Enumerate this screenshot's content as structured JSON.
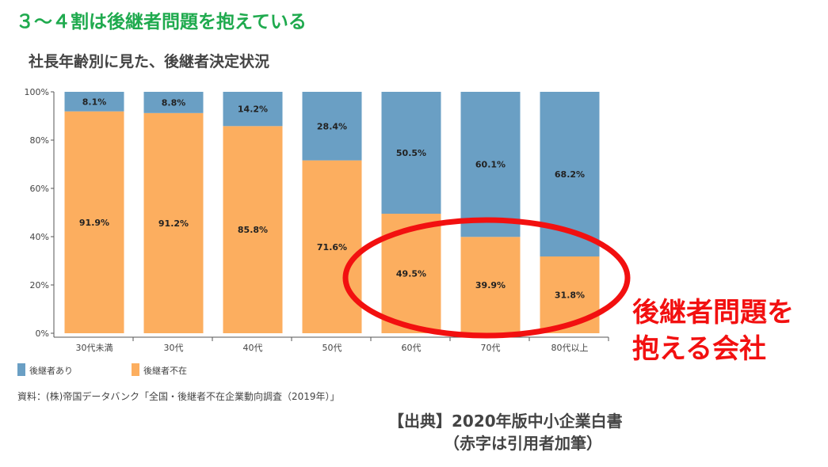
{
  "headline": "３～４割は後継者問題を抱えている",
  "source_note": "資料：(株)帝国データバンク「全国・後継者不在企業動向調査（2019年）」",
  "citation": {
    "line1": "【出典】2020年版中小企業白書",
    "line2": "（赤字は引用者加筆）"
  },
  "annotation": {
    "line1": "後継者問題を",
    "line2": "抱える会社"
  },
  "colors": {
    "has_successor": "#6a9fc4",
    "no_successor": "#fcae5f",
    "annotation": "#f21010",
    "headline": "#1faa4e"
  },
  "chart_data": {
    "type": "bar",
    "stacked": true,
    "title": "社長年齢別に見た、後継者決定状況",
    "categories": [
      "30代未満",
      "30代",
      "40代",
      "50代",
      "60代",
      "70代",
      "80代以上"
    ],
    "series": [
      {
        "name": "後継者不在",
        "values": [
          91.9,
          91.2,
          85.8,
          71.6,
          49.5,
          39.9,
          31.8
        ]
      },
      {
        "name": "後継者あり",
        "values": [
          8.1,
          8.8,
          14.2,
          28.4,
          50.5,
          60.1,
          68.2
        ]
      }
    ],
    "y_ticks": [
      "0%",
      "20%",
      "40%",
      "60%",
      "80%",
      "100%"
    ],
    "ylim": [
      0,
      100
    ],
    "legend_position": "bottom-left",
    "highlight": "60代〜80代以上 後継者不在 circled"
  }
}
